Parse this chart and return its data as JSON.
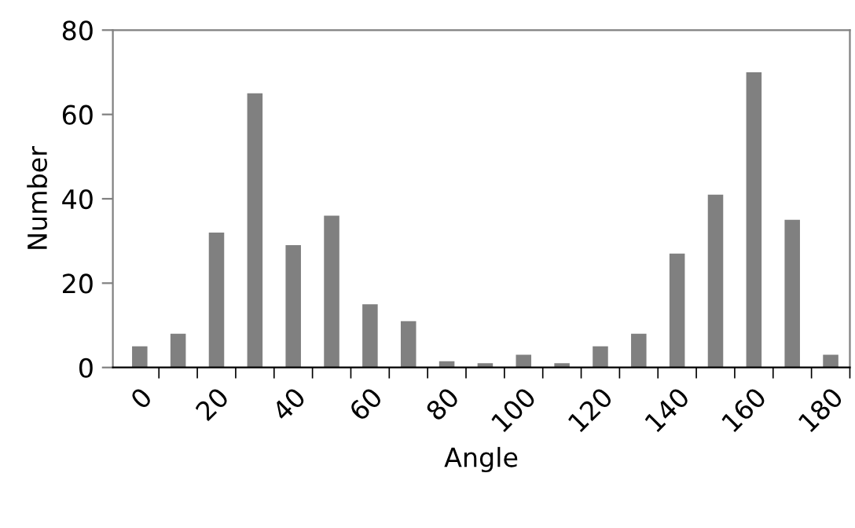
{
  "chart_data": {
    "type": "bar",
    "xlabel": "Angle",
    "ylabel": "Number",
    "categories": [
      "0",
      null,
      "20",
      null,
      "40",
      null,
      "60",
      null,
      "80",
      null,
      "100",
      null,
      "120",
      null,
      "140",
      null,
      "160",
      null,
      "180"
    ],
    "values": [
      5,
      8,
      32,
      65,
      29,
      36,
      15,
      11,
      1.5,
      1,
      3,
      1,
      5,
      8,
      27,
      41,
      70,
      35,
      3
    ],
    "color": "#808080",
    "ylim": [
      0,
      80
    ],
    "yticks": [
      0,
      20,
      40,
      60,
      80
    ],
    "grid": false,
    "legend": false
  }
}
